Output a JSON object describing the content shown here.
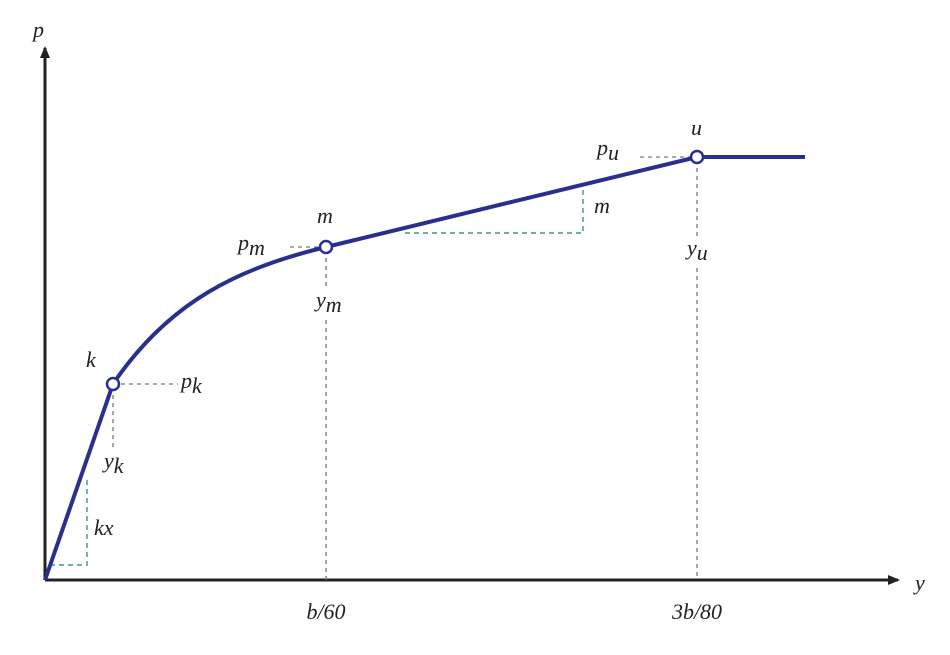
{
  "axes": {
    "y_axis": "p",
    "x_axis": "y"
  },
  "points": [
    {
      "label": "k",
      "p": {
        "base": "p",
        "sub": "k"
      },
      "y": {
        "base": "y",
        "sub": "k"
      }
    },
    {
      "label": "m",
      "p": {
        "base": "p",
        "sub": "m"
      },
      "y": {
        "base": "y",
        "sub": "m"
      }
    },
    {
      "label": "u",
      "p": {
        "base": "p",
        "sub": "u"
      },
      "y": {
        "base": "y",
        "sub": "u"
      }
    }
  ],
  "slopes": [
    "kx",
    "m"
  ],
  "x_marks": [
    {
      "pre": "",
      "var": "b",
      "post": "/60"
    },
    {
      "pre": "3",
      "var": "b",
      "post": "/80"
    }
  ]
}
